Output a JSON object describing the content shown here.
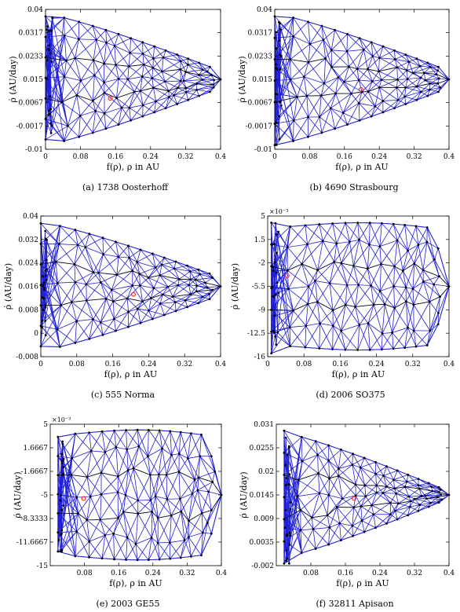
{
  "chart_data": [
    {
      "type": "mesh",
      "caption": "(a) 1738 Oosterhoff",
      "xlabel": "f(ρ), ρ in AU",
      "ylabel": "ρ̇ (AU/day)",
      "xticks": [
        "0",
        "0.08",
        "0.16",
        "0.24",
        "0.32",
        "0.4"
      ],
      "yticks": [
        "-0.01",
        "-0.0017",
        "0.0067",
        "0.015",
        "0.0233",
        "0.0317",
        "0.04"
      ],
      "multiplier": "",
      "xlim": [
        0,
        0.4
      ],
      "ylim": [
        -0.01,
        0.04
      ],
      "shape": "cone",
      "x_left": 0,
      "x_right": 0.4,
      "y_center": 0.015,
      "y_half": 0.0235,
      "tip_half": 0.003,
      "left_top": 0.0375,
      "left_bottom": -0.0065,
      "highlight": {
        "x": 0.148,
        "y": 0.0082
      }
    },
    {
      "type": "mesh",
      "caption": "(b) 4690 Strasbourg",
      "xlabel": "f(ρ), ρ in AU",
      "ylabel": "ρ̇ (AU/day)",
      "xticks": [
        "0",
        "0.08",
        "0.16",
        "0.24",
        "0.32",
        "0.4"
      ],
      "yticks": [
        "-0.01",
        "-0.0017",
        "0.0067",
        "0.015",
        "0.0233",
        "0.0317",
        "0.04"
      ],
      "multiplier": "",
      "xlim": [
        0,
        0.4
      ],
      "ylim": [
        -0.01,
        0.04
      ],
      "shape": "cone",
      "x_left": 0,
      "x_right": 0.4,
      "y_center": 0.015,
      "y_half": 0.0235,
      "tip_half": 0.003,
      "left_top": 0.0375,
      "left_bottom": -0.0085,
      "highlight": {
        "x": 0.198,
        "y": 0.0114
      }
    },
    {
      "type": "mesh",
      "caption": "(c) 555 Norma",
      "xlabel": "f(ρ), ρ in AU",
      "ylabel": "ρ̇ (AU/day)",
      "xticks": [
        "0",
        "0.08",
        "0.16",
        "0.24",
        "0.32",
        "0.4"
      ],
      "yticks": [
        "-0.008",
        "0",
        "0.008",
        "0.016",
        "0.024",
        "0.032",
        "0.04"
      ],
      "multiplier": "",
      "xlim": [
        0,
        0.4
      ],
      "ylim": [
        -0.008,
        0.04
      ],
      "shape": "cone",
      "x_left": 0,
      "x_right": 0.4,
      "y_center": 0.016,
      "y_half": 0.022,
      "tip_half": 0.003,
      "left_top": 0.0375,
      "left_bottom": -0.0045,
      "highlight": {
        "x": 0.206,
        "y": 0.0133
      }
    },
    {
      "type": "mesh",
      "caption": "(d) 2006 SO375",
      "xlabel": "f(ρ), ρ in AU",
      "ylabel": "ρ̇ (AU/day)",
      "xticks": [
        "0",
        "0.08",
        "0.16",
        "0.24",
        "0.32",
        "0.4"
      ],
      "yticks": [
        "-16",
        "-12.5",
        "-9",
        "-5.5",
        "-2",
        "1.5",
        "5"
      ],
      "multiplier": "×10⁻³",
      "xlim": [
        0,
        0.4
      ],
      "ylim": [
        -16,
        5
      ],
      "shape": "barrel",
      "x_left": 0.008,
      "x_right": 0.4,
      "y_center": -5.5,
      "y_half": 9.5,
      "tip_half": 0,
      "left_top": 4.0,
      "left_bottom": -15.5,
      "highlight": {
        "x": 0.043,
        "y": -3.9
      }
    },
    {
      "type": "mesh",
      "caption": "(e) 2003 GE55",
      "xlabel": "f(ρ), ρ in AU",
      "ylabel": "ρ̇ (AU/day)",
      "xticks": [
        "0.08",
        "0.16",
        "0.24",
        "0.32",
        "0.4"
      ],
      "yticks": [
        "-15",
        "-11.6667",
        "-8.3333",
        "-5",
        "-1.6667",
        "1.6667",
        "5"
      ],
      "multiplier": "×10⁻³",
      "xlim": [
        0,
        0.4
      ],
      "ylim": [
        -15,
        5
      ],
      "shape": "barrel",
      "x_left": 0.018,
      "x_right": 0.4,
      "y_center": -5,
      "y_half": 9.2,
      "tip_half": 0,
      "left_top": 3.2,
      "left_bottom": -13.0,
      "highlight": {
        "x": 0.078,
        "y": -5.5
      }
    },
    {
      "type": "mesh",
      "caption": "(f) 32811 Apisaon",
      "xlabel": "f(ρ), ρ in AU",
      "ylabel": "ρ̇ (AU/day)",
      "xticks": [
        "0.08",
        "0.16",
        "0.24",
        "0.32",
        "0.4"
      ],
      "yticks": [
        "-0.002",
        "0.0035",
        "0.009",
        "0.0145",
        "0.02",
        "0.0255",
        "0.031"
      ],
      "multiplier": "",
      "xlim": [
        0,
        0.4
      ],
      "ylim": [
        -0.002,
        0.031
      ],
      "shape": "cone",
      "x_left": 0.018,
      "x_right": 0.4,
      "y_center": 0.0145,
      "y_half": 0.0145,
      "tip_half": 0.0008,
      "left_top": 0.0295,
      "left_bottom": -0.0015,
      "highlight": {
        "x": 0.18,
        "y": 0.0137
      }
    }
  ]
}
